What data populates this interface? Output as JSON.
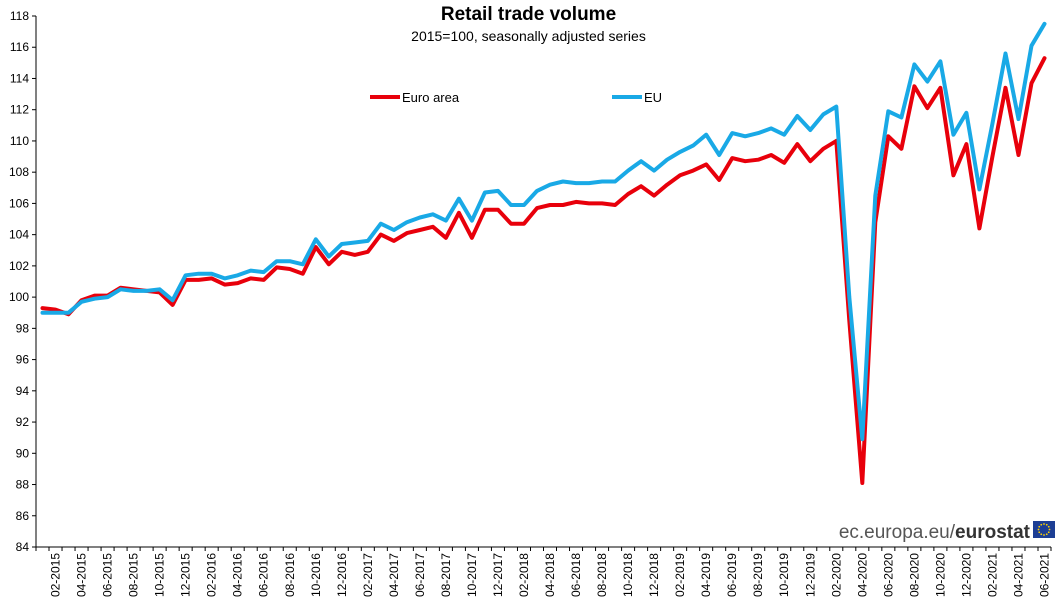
{
  "colors": {
    "euro_area": "#e8000b",
    "eu": "#19a9e6",
    "flag_bg": "#1d3e94",
    "flag_star": "#ffd200"
  },
  "source": {
    "domain": "ec.europa.eu/",
    "brand": "eurostat",
    "icon": "eu-flag-icon"
  },
  "chart_data": {
    "type": "line",
    "title": "Retail trade volume",
    "subtitle": "2015=100,  seasonally adjusted series",
    "xlabel": "",
    "ylabel": "",
    "ylim": [
      84,
      118
    ],
    "yticks": [
      "84",
      "86",
      "88",
      "90",
      "92",
      "94",
      "96",
      "98",
      "100",
      "102",
      "104",
      "106",
      "108",
      "110",
      "112",
      "114",
      "116",
      "118"
    ],
    "grid": "none",
    "legend": "top-center",
    "x": [
      "01-2015",
      "02-2015",
      "03-2015",
      "04-2015",
      "05-2015",
      "06-2015",
      "07-2015",
      "08-2015",
      "09-2015",
      "10-2015",
      "11-2015",
      "12-2015",
      "01-2016",
      "02-2016",
      "03-2016",
      "04-2016",
      "05-2016",
      "06-2016",
      "07-2016",
      "08-2016",
      "09-2016",
      "10-2016",
      "11-2016",
      "12-2016",
      "01-2017",
      "02-2017",
      "03-2017",
      "04-2017",
      "05-2017",
      "06-2017",
      "07-2017",
      "08-2017",
      "09-2017",
      "10-2017",
      "11-2017",
      "12-2017",
      "01-2018",
      "02-2018",
      "03-2018",
      "04-2018",
      "05-2018",
      "06-2018",
      "07-2018",
      "08-2018",
      "09-2018",
      "10-2018",
      "11-2018",
      "12-2018",
      "01-2019",
      "02-2019",
      "03-2019",
      "04-2019",
      "05-2019",
      "06-2019",
      "07-2019",
      "08-2019",
      "09-2019",
      "10-2019",
      "11-2019",
      "12-2019",
      "01-2020",
      "02-2020",
      "03-2020",
      "04-2020",
      "05-2020",
      "06-2020",
      "07-2020",
      "08-2020",
      "09-2020",
      "10-2020",
      "11-2020",
      "12-2020",
      "01-2021",
      "02-2021",
      "03-2021",
      "04-2021",
      "05-2021",
      "06-2021"
    ],
    "tick_labels": [
      "02-2015",
      "04-2015",
      "06-2015",
      "08-2015",
      "10-2015",
      "12-2015",
      "02-2016",
      "04-2016",
      "06-2016",
      "08-2016",
      "10-2016",
      "12-2016",
      "02-2017",
      "04-2017",
      "06-2017",
      "08-2017",
      "10-2017",
      "12-2017",
      "02-2018",
      "04-2018",
      "06-2018",
      "08-2018",
      "10-2018",
      "12-2018",
      "02-2019",
      "04-2019",
      "06-2019",
      "08-2019",
      "10-2019",
      "12-2019",
      "02-2020",
      "04-2020",
      "06-2020",
      "08-2020",
      "10-2020",
      "12-2020",
      "02-2021",
      "04-2021",
      "06-2021"
    ],
    "series": [
      {
        "name": "Euro area",
        "color": "#e8000b",
        "values": [
          99.3,
          99.2,
          98.9,
          99.8,
          100.1,
          100.1,
          100.6,
          100.5,
          100.4,
          100.3,
          99.5,
          101.1,
          101.1,
          101.2,
          100.8,
          100.9,
          101.2,
          101.1,
          101.9,
          101.8,
          101.5,
          103.2,
          102.1,
          102.9,
          102.7,
          102.9,
          104.0,
          103.6,
          104.1,
          104.3,
          104.5,
          103.8,
          105.4,
          103.8,
          105.6,
          105.6,
          104.7,
          104.7,
          105.7,
          105.9,
          105.9,
          106.1,
          106.0,
          106.0,
          105.9,
          106.6,
          107.1,
          106.5,
          107.2,
          107.8,
          108.1,
          108.5,
          107.5,
          108.9,
          108.7,
          108.8,
          109.1,
          108.6,
          109.8,
          108.7,
          109.5,
          110.0,
          98.5,
          88.1,
          104.8,
          110.3,
          109.5,
          113.5,
          112.1,
          113.4,
          107.8,
          109.8,
          104.4,
          109.0,
          113.4,
          109.1,
          113.7,
          115.3
        ]
      },
      {
        "name": "EU",
        "color": "#19a9e6",
        "values": [
          99.0,
          99.0,
          99.0,
          99.7,
          99.9,
          100.0,
          100.5,
          100.4,
          100.4,
          100.5,
          99.8,
          101.4,
          101.5,
          101.5,
          101.2,
          101.4,
          101.7,
          101.6,
          102.3,
          102.3,
          102.1,
          103.7,
          102.6,
          103.4,
          103.5,
          103.6,
          104.7,
          104.3,
          104.8,
          105.1,
          105.3,
          104.9,
          106.3,
          104.9,
          106.7,
          106.8,
          105.9,
          105.9,
          106.8,
          107.2,
          107.4,
          107.3,
          107.3,
          107.4,
          107.4,
          108.1,
          108.7,
          108.1,
          108.8,
          109.3,
          109.7,
          110.4,
          109.1,
          110.5,
          110.3,
          110.5,
          110.8,
          110.4,
          111.6,
          110.7,
          111.7,
          112.2,
          100.0,
          90.9,
          106.5,
          111.9,
          111.5,
          114.9,
          113.8,
          115.1,
          110.4,
          111.8,
          106.9,
          111.1,
          115.6,
          111.4,
          116.1,
          117.5
        ]
      }
    ]
  }
}
